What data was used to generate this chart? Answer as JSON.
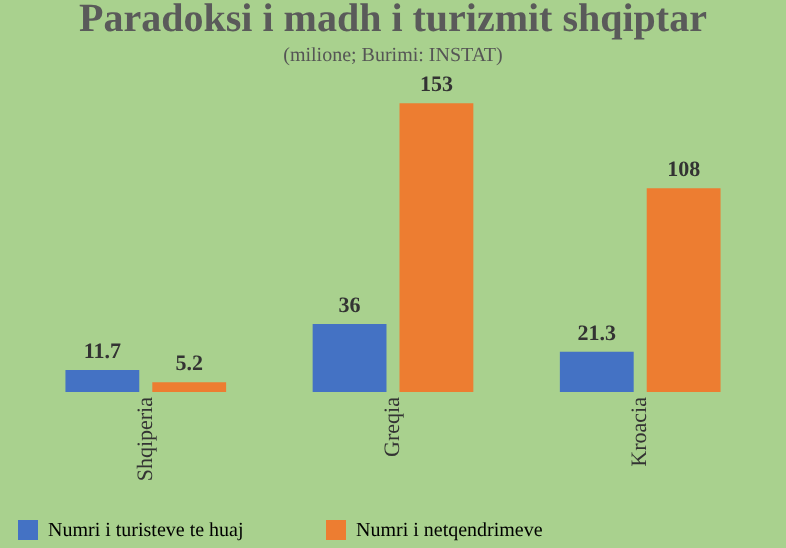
{
  "chart_data": {
    "type": "bar",
    "title": "Paradoksi i madh i turizmit shqiptar",
    "subtitle": "(milione; Burimi: INSTAT)",
    "categories": [
      "Shqiperia",
      "Greqia",
      "Kroacia"
    ],
    "series": [
      {
        "name": "Numri i turisteve te huaj",
        "color": "#4472c4",
        "values": [
          11.7,
          36,
          21.3
        ]
      },
      {
        "name": "Numri i netqendrimeve",
        "color": "#ed7d31",
        "values": [
          5.2,
          153,
          108
        ]
      }
    ],
    "legend": "bottom",
    "data_labels": true
  }
}
